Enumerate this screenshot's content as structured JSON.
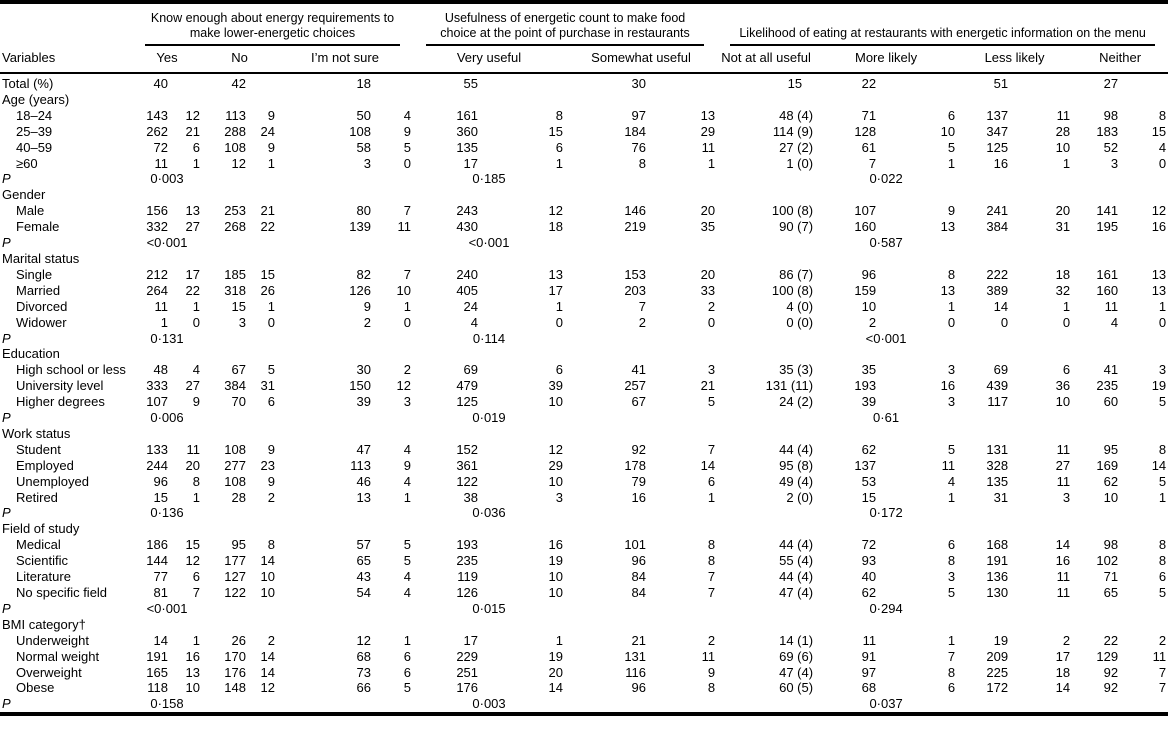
{
  "table": {
    "variables_header": "Variables",
    "groups": [
      {
        "label": "Know enough about energy requirements to make lower-energetic choices"
      },
      {
        "label": "Usefulness of energetic count to make food choice at the point of purchase in restaurants"
      },
      {
        "label": "Likelihood of eating at restaurants with energetic information on the menu"
      }
    ],
    "subheaders": [
      "Yes",
      "No",
      "I’m not sure",
      "Very useful",
      "Somewhat useful",
      "Not at all useful",
      "More likely",
      "Less likely",
      "Neither"
    ],
    "rows": [
      {
        "t": "total",
        "label": "Total (%)",
        "v": [
          "40",
          "42",
          "18",
          "55",
          "30",
          "15",
          "22",
          "51",
          "27"
        ]
      },
      {
        "t": "sec",
        "label": "Age (years)"
      },
      {
        "t": "d",
        "label": "18–24",
        "v": [
          "143",
          "12",
          "113",
          "9",
          "50",
          "4",
          "161",
          "8",
          "97",
          "13",
          "48 (4)",
          "71",
          "6",
          "137",
          "11",
          "98",
          "8"
        ]
      },
      {
        "t": "d",
        "label": "25–39",
        "v": [
          "262",
          "21",
          "288",
          "24",
          "108",
          "9",
          "360",
          "15",
          "184",
          "29",
          "114 (9)",
          "128",
          "10",
          "347",
          "28",
          "183",
          "15"
        ]
      },
      {
        "t": "d",
        "label": "40–59",
        "v": [
          "72",
          "6",
          "108",
          "9",
          "58",
          "5",
          "135",
          "6",
          "76",
          "11",
          "27 (2)",
          "61",
          "5",
          "125",
          "10",
          "52",
          "4"
        ]
      },
      {
        "t": "d",
        "label": "≥60",
        "v": [
          "11",
          "1",
          "12",
          "1",
          "3",
          "0",
          "17",
          "1",
          "8",
          "1",
          "1 (0)",
          "7",
          "1",
          "16",
          "1",
          "3",
          "0"
        ]
      },
      {
        "t": "p",
        "label": "P",
        "v": [
          "0·003",
          "0·185",
          "0·022"
        ]
      },
      {
        "t": "sec",
        "label": "Gender"
      },
      {
        "t": "d",
        "label": "Male",
        "v": [
          "156",
          "13",
          "253",
          "21",
          "80",
          "7",
          "243",
          "12",
          "146",
          "20",
          "100 (8)",
          "107",
          "9",
          "241",
          "20",
          "141",
          "12"
        ]
      },
      {
        "t": "d",
        "label": "Female",
        "v": [
          "332",
          "27",
          "268",
          "22",
          "139",
          "11",
          "430",
          "18",
          "219",
          "35",
          "90 (7)",
          "160",
          "13",
          "384",
          "31",
          "195",
          "16"
        ]
      },
      {
        "t": "p",
        "label": "P",
        "v": [
          "<0·001",
          "<0·001",
          "0·587"
        ]
      },
      {
        "t": "sec",
        "label": "Marital status"
      },
      {
        "t": "d",
        "label": "Single",
        "v": [
          "212",
          "17",
          "185",
          "15",
          "82",
          "7",
          "240",
          "13",
          "153",
          "20",
          "86 (7)",
          "96",
          "8",
          "222",
          "18",
          "161",
          "13"
        ]
      },
      {
        "t": "d",
        "label": "Married",
        "v": [
          "264",
          "22",
          "318",
          "26",
          "126",
          "10",
          "405",
          "17",
          "203",
          "33",
          "100 (8)",
          "159",
          "13",
          "389",
          "32",
          "160",
          "13"
        ]
      },
      {
        "t": "d",
        "label": "Divorced",
        "v": [
          "11",
          "1",
          "15",
          "1",
          "9",
          "1",
          "24",
          "1",
          "7",
          "2",
          "4 (0)",
          "10",
          "1",
          "14",
          "1",
          "11",
          "1"
        ]
      },
      {
        "t": "d",
        "label": "Widower",
        "v": [
          "1",
          "0",
          "3",
          "0",
          "2",
          "0",
          "4",
          "0",
          "2",
          "0",
          "0 (0)",
          "2",
          "0",
          "0",
          "0",
          "4",
          "0"
        ]
      },
      {
        "t": "p",
        "label": "P",
        "v": [
          "0·131",
          "0·114",
          "<0·001"
        ]
      },
      {
        "t": "sec",
        "label": "Education"
      },
      {
        "t": "d",
        "label": "High school or less",
        "v": [
          "48",
          "4",
          "67",
          "5",
          "30",
          "2",
          "69",
          "6",
          "41",
          "3",
          "35 (3)",
          "35",
          "3",
          "69",
          "6",
          "41",
          "3"
        ]
      },
      {
        "t": "d",
        "label": "University level",
        "v": [
          "333",
          "27",
          "384",
          "31",
          "150",
          "12",
          "479",
          "39",
          "257",
          "21",
          "131 (11)",
          "193",
          "16",
          "439",
          "36",
          "235",
          "19"
        ]
      },
      {
        "t": "d",
        "label": "Higher degrees",
        "v": [
          "107",
          "9",
          "70",
          "6",
          "39",
          "3",
          "125",
          "10",
          "67",
          "5",
          "24 (2)",
          "39",
          "3",
          "117",
          "10",
          "60",
          "5"
        ]
      },
      {
        "t": "p",
        "label": "P",
        "v": [
          "0·006",
          "0·019",
          "0·61"
        ]
      },
      {
        "t": "sec",
        "label": "Work status"
      },
      {
        "t": "d",
        "label": "Student",
        "v": [
          "133",
          "11",
          "108",
          "9",
          "47",
          "4",
          "152",
          "12",
          "92",
          "7",
          "44 (4)",
          "62",
          "5",
          "131",
          "11",
          "95",
          "8"
        ]
      },
      {
        "t": "d",
        "label": "Employed",
        "v": [
          "244",
          "20",
          "277",
          "23",
          "113",
          "9",
          "361",
          "29",
          "178",
          "14",
          "95 (8)",
          "137",
          "11",
          "328",
          "27",
          "169",
          "14"
        ]
      },
      {
        "t": "d",
        "label": "Unemployed",
        "v": [
          "96",
          "8",
          "108",
          "9",
          "46",
          "4",
          "122",
          "10",
          "79",
          "6",
          "49 (4)",
          "53",
          "4",
          "135",
          "11",
          "62",
          "5"
        ]
      },
      {
        "t": "d",
        "label": "Retired",
        "v": [
          "15",
          "1",
          "28",
          "2",
          "13",
          "1",
          "38",
          "3",
          "16",
          "1",
          "2 (0)",
          "15",
          "1",
          "31",
          "3",
          "10",
          "1"
        ]
      },
      {
        "t": "p",
        "label": "P",
        "v": [
          "0·136",
          "0·036",
          "0·172"
        ]
      },
      {
        "t": "sec",
        "label": "Field of study"
      },
      {
        "t": "d",
        "label": "Medical",
        "v": [
          "186",
          "15",
          "95",
          "8",
          "57",
          "5",
          "193",
          "16",
          "101",
          "8",
          "44 (4)",
          "72",
          "6",
          "168",
          "14",
          "98",
          "8"
        ]
      },
      {
        "t": "d",
        "label": "Scientific",
        "v": [
          "144",
          "12",
          "177",
          "14",
          "65",
          "5",
          "235",
          "19",
          "96",
          "8",
          "55 (4)",
          "93",
          "8",
          "191",
          "16",
          "102",
          "8"
        ]
      },
      {
        "t": "d",
        "label": "Literature",
        "v": [
          "77",
          "6",
          "127",
          "10",
          "43",
          "4",
          "119",
          "10",
          "84",
          "7",
          "44 (4)",
          "40",
          "3",
          "136",
          "11",
          "71",
          "6"
        ]
      },
      {
        "t": "d",
        "label": "No specific field",
        "v": [
          "81",
          "7",
          "122",
          "10",
          "54",
          "4",
          "126",
          "10",
          "84",
          "7",
          "47 (4)",
          "62",
          "5",
          "130",
          "11",
          "65",
          "5"
        ]
      },
      {
        "t": "p",
        "label": "P",
        "v": [
          "<0·001",
          "0·015",
          "0·294"
        ]
      },
      {
        "t": "sec",
        "label": "BMI category†"
      },
      {
        "t": "d",
        "label": "Underweight",
        "v": [
          "14",
          "1",
          "26",
          "2",
          "12",
          "1",
          "17",
          "1",
          "21",
          "2",
          "14 (1)",
          "11",
          "1",
          "19",
          "2",
          "22",
          "2"
        ]
      },
      {
        "t": "d",
        "label": "Normal weight",
        "v": [
          "191",
          "16",
          "170",
          "14",
          "68",
          "6",
          "229",
          "19",
          "131",
          "11",
          "69 (6)",
          "91",
          "7",
          "209",
          "17",
          "129",
          "11"
        ]
      },
      {
        "t": "d",
        "label": "Overweight",
        "v": [
          "165",
          "13",
          "176",
          "14",
          "73",
          "6",
          "251",
          "20",
          "116",
          "9",
          "47 (4)",
          "97",
          "8",
          "225",
          "18",
          "92",
          "7"
        ]
      },
      {
        "t": "d",
        "label": "Obese",
        "v": [
          "118",
          "10",
          "148",
          "12",
          "66",
          "5",
          "176",
          "14",
          "96",
          "8",
          "60 (5)",
          "68",
          "6",
          "172",
          "14",
          "92",
          "7"
        ]
      },
      {
        "t": "p",
        "label": "P",
        "v": [
          "0·158",
          "0·003",
          "0·037"
        ]
      }
    ]
  }
}
